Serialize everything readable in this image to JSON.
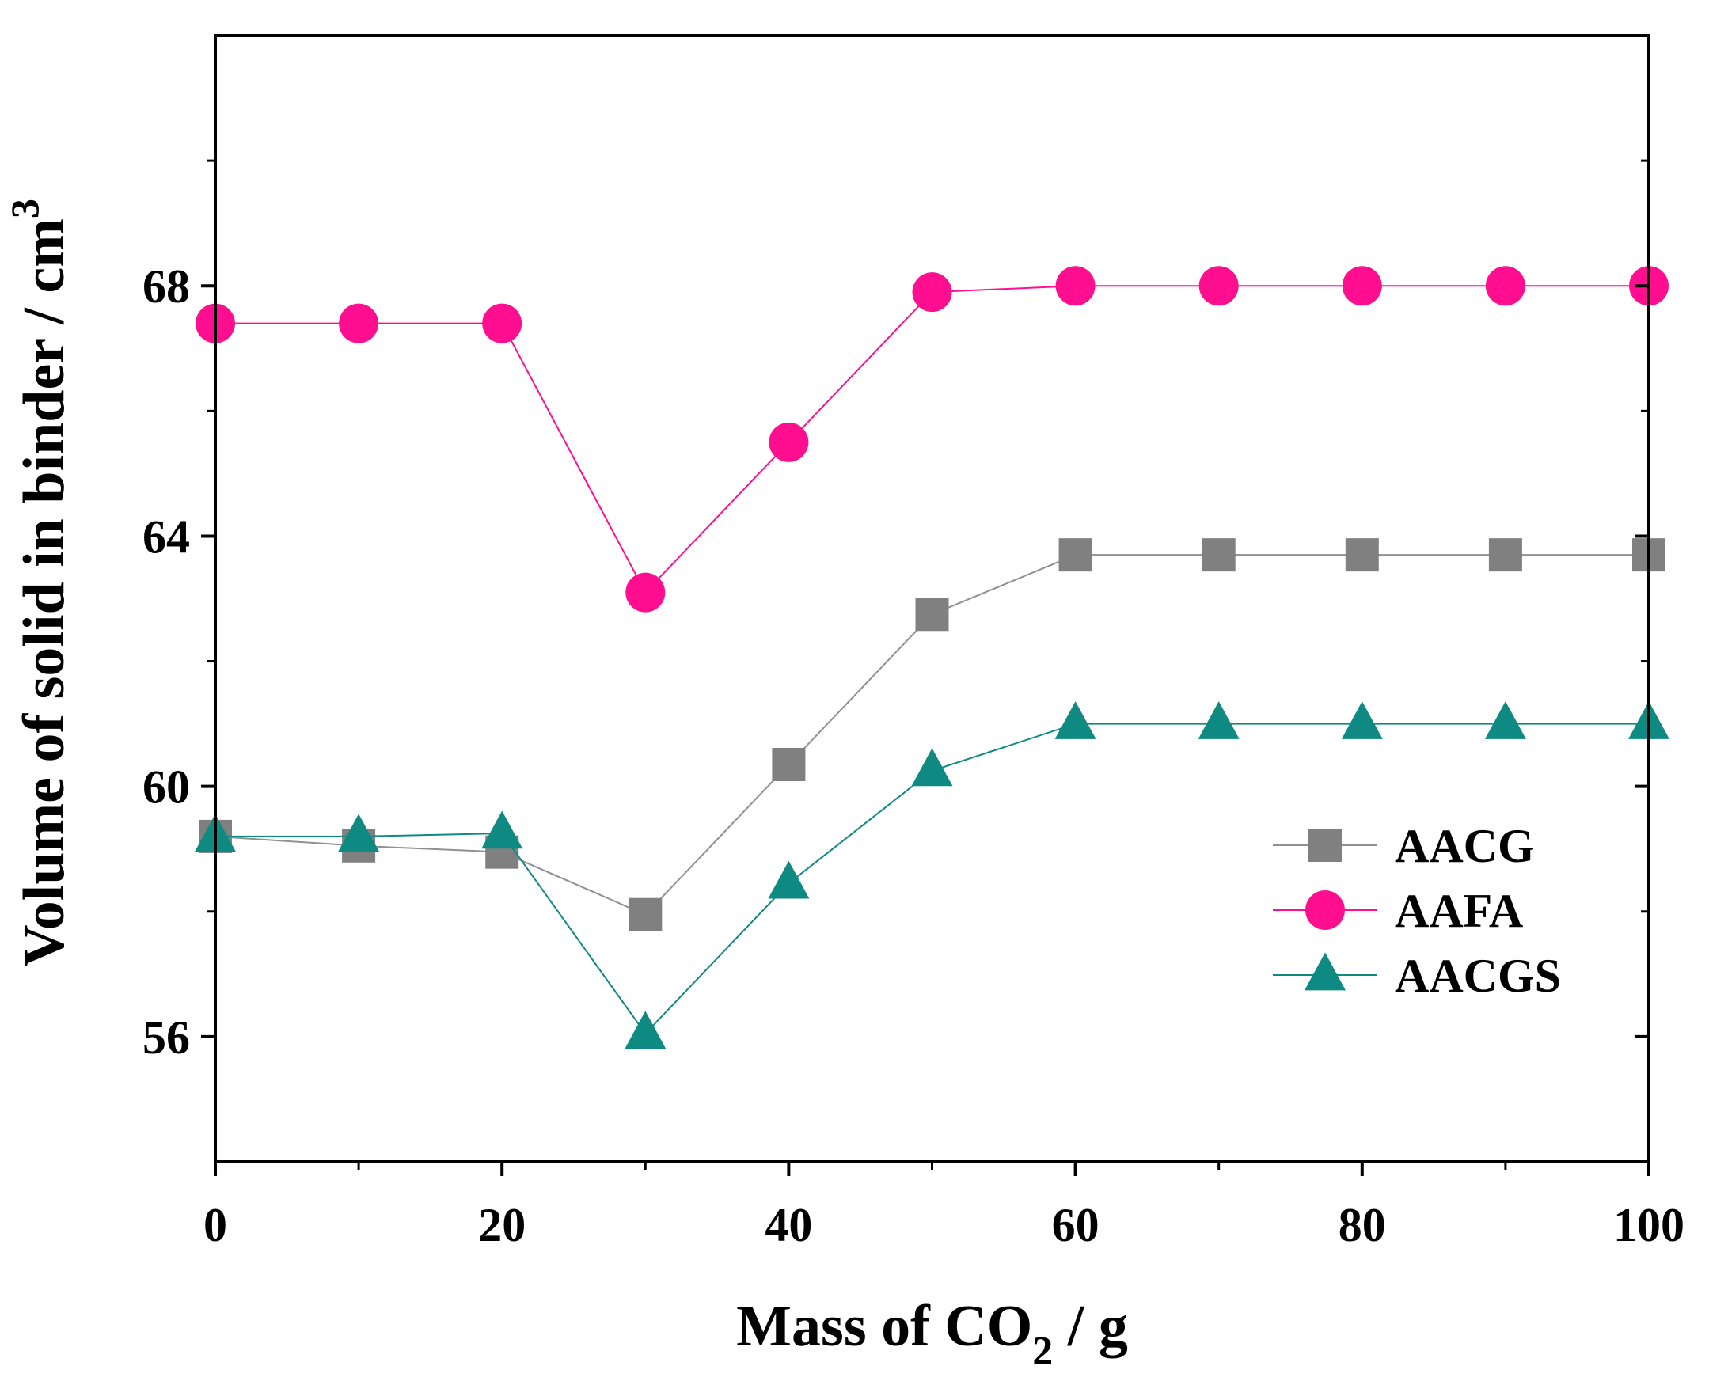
{
  "chart_data": {
    "type": "line",
    "title": "",
    "xlabel": {
      "main": "Mass of CO",
      "sub": "2",
      "tail": " / g"
    },
    "ylabel": {
      "main": "Volume of solid in binder / cm",
      "sup": "3"
    },
    "xlim": [
      0,
      100
    ],
    "ylim": [
      54,
      72
    ],
    "xticks": [
      0,
      20,
      40,
      60,
      80,
      100
    ],
    "yticks": [
      56,
      60,
      64,
      68
    ],
    "xticks_minor": [
      10,
      30,
      50,
      70,
      90
    ],
    "yticks_minor": [
      58,
      62,
      66,
      70
    ],
    "grid": false,
    "legend_position": "center-right",
    "x": [
      0,
      10,
      20,
      30,
      40,
      50,
      60,
      70,
      80,
      90,
      100
    ],
    "series": [
      {
        "name": "AACG",
        "marker": "square",
        "color": "#808080",
        "line_color": "#909090",
        "values": [
          59.2,
          59.05,
          58.95,
          57.95,
          60.35,
          62.75,
          63.7,
          63.7,
          63.7,
          63.7,
          63.7
        ]
      },
      {
        "name": "AAFA",
        "marker": "circle",
        "color": "#ff0f8f",
        "line_color": "#ff0f8f",
        "values": [
          67.4,
          67.4,
          67.4,
          63.1,
          65.5,
          67.9,
          68.0,
          68.0,
          68.0,
          68.0,
          68.0
        ]
      },
      {
        "name": "AACGS",
        "marker": "triangle",
        "color": "#0e8a82",
        "line_color": "#0e8a82",
        "values": [
          59.2,
          59.2,
          59.25,
          56.05,
          58.45,
          60.25,
          61.0,
          61.0,
          61.0,
          61.0,
          61.0
        ]
      }
    ]
  }
}
